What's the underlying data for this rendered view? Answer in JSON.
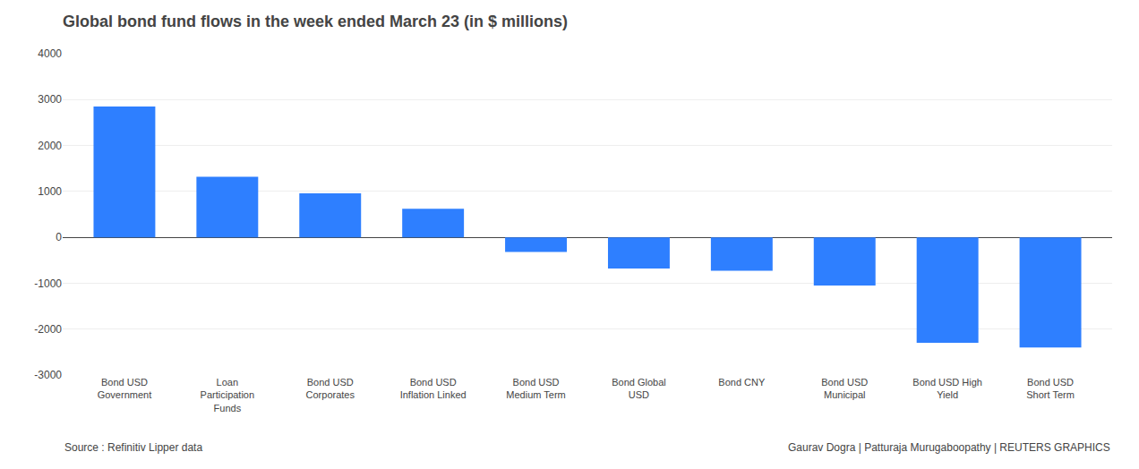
{
  "chart_data": {
    "type": "bar",
    "title": "Global bond fund flows in the week ended March 23 (in $ millions)",
    "categories": [
      "Bond USD\nGovernment",
      "Loan\nParticipation\nFunds",
      "Bond USD\nCorporates",
      "Bond USD\nInflation Linked",
      "Bond USD\nMedium Term",
      "Bond Global\nUSD",
      "Bond CNY",
      "Bond USD\nMunicipal",
      "Bond USD High\nYield",
      "Bond USD\nShort Term"
    ],
    "values": [
      2850,
      1320,
      960,
      620,
      -320,
      -680,
      -730,
      -1050,
      -2300,
      -2400
    ],
    "color": "#2E7FFF",
    "ylim": [
      -3000,
      4000
    ],
    "yticks": [
      -3000,
      -2000,
      -1000,
      0,
      1000,
      2000,
      3000,
      4000
    ],
    "grid": true,
    "annotations": [
      "Source : Refinitiv Lipper data",
      "Gaurav Dogra | Patturaja Murugaboopathy | REUTERS GRAPHICS"
    ]
  }
}
